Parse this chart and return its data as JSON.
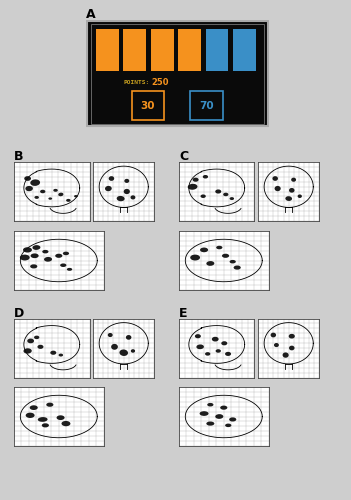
{
  "bg_color": "#cecece",
  "panel_bg": "#0a0a0a",
  "orange_color": "#f5921e",
  "blue_color": "#3a8fc7",
  "points_label_color": "#c8a020",
  "points_value_color": "#f5921e",
  "score_value": "250",
  "orange_score": "30",
  "blue_score": "70",
  "label_A": "A",
  "label_B": "B",
  "label_C": "C",
  "label_D": "D",
  "label_E": "E",
  "blobs": {
    "B_lat": [
      [
        0.18,
        0.72,
        0.09,
        0.08,
        0
      ],
      [
        0.28,
        0.65,
        0.13,
        0.11,
        10
      ],
      [
        0.2,
        0.55,
        0.1,
        0.09,
        5
      ],
      [
        0.38,
        0.5,
        0.07,
        0.06,
        0
      ],
      [
        0.55,
        0.52,
        0.06,
        0.05,
        0
      ],
      [
        0.62,
        0.45,
        0.07,
        0.06,
        20
      ],
      [
        0.72,
        0.35,
        0.06,
        0.05,
        0
      ],
      [
        0.3,
        0.4,
        0.06,
        0.05,
        0
      ],
      [
        0.48,
        0.38,
        0.05,
        0.04,
        0
      ],
      [
        0.82,
        0.42,
        0.05,
        0.04,
        0
      ]
    ],
    "B_cor": [
      [
        0.3,
        0.72,
        0.09,
        0.08,
        0
      ],
      [
        0.55,
        0.68,
        0.08,
        0.07,
        0
      ],
      [
        0.25,
        0.55,
        0.11,
        0.09,
        5
      ],
      [
        0.55,
        0.5,
        0.1,
        0.09,
        0
      ],
      [
        0.45,
        0.38,
        0.13,
        0.09,
        -5
      ],
      [
        0.65,
        0.4,
        0.08,
        0.07,
        0
      ]
    ],
    "B_ax": [
      [
        0.15,
        0.68,
        0.1,
        0.09,
        0
      ],
      [
        0.25,
        0.72,
        0.09,
        0.08,
        15
      ],
      [
        0.12,
        0.55,
        0.11,
        0.1,
        0
      ],
      [
        0.23,
        0.58,
        0.09,
        0.08,
        0
      ],
      [
        0.35,
        0.65,
        0.07,
        0.06,
        0
      ],
      [
        0.38,
        0.52,
        0.09,
        0.08,
        10
      ],
      [
        0.5,
        0.58,
        0.08,
        0.07,
        0
      ],
      [
        0.58,
        0.62,
        0.07,
        0.06,
        0
      ],
      [
        0.55,
        0.42,
        0.07,
        0.06,
        0
      ],
      [
        0.62,
        0.35,
        0.06,
        0.05,
        0
      ],
      [
        0.22,
        0.4,
        0.08,
        0.07,
        0
      ]
    ],
    "C_lat": [
      [
        0.22,
        0.7,
        0.08,
        0.07,
        0
      ],
      [
        0.35,
        0.75,
        0.07,
        0.06,
        0
      ],
      [
        0.18,
        0.58,
        0.13,
        0.1,
        8
      ],
      [
        0.52,
        0.5,
        0.08,
        0.07,
        0
      ],
      [
        0.62,
        0.45,
        0.07,
        0.06,
        0
      ],
      [
        0.32,
        0.42,
        0.07,
        0.06,
        0
      ],
      [
        0.7,
        0.38,
        0.06,
        0.05,
        0
      ]
    ],
    "C_cor": [
      [
        0.28,
        0.72,
        0.09,
        0.08,
        0
      ],
      [
        0.58,
        0.7,
        0.08,
        0.07,
        0
      ],
      [
        0.32,
        0.55,
        0.1,
        0.09,
        0
      ],
      [
        0.55,
        0.52,
        0.09,
        0.08,
        0
      ],
      [
        0.5,
        0.38,
        0.11,
        0.08,
        -5
      ],
      [
        0.68,
        0.42,
        0.07,
        0.06,
        0
      ]
    ],
    "C_ax": [
      [
        0.28,
        0.68,
        0.09,
        0.08,
        0
      ],
      [
        0.45,
        0.72,
        0.07,
        0.06,
        0
      ],
      [
        0.18,
        0.55,
        0.11,
        0.1,
        0
      ],
      [
        0.52,
        0.58,
        0.08,
        0.07,
        0
      ],
      [
        0.6,
        0.48,
        0.07,
        0.06,
        0
      ],
      [
        0.35,
        0.45,
        0.09,
        0.08,
        10
      ],
      [
        0.65,
        0.38,
        0.08,
        0.07,
        0
      ]
    ],
    "D_lat": [
      [
        0.22,
        0.62,
        0.09,
        0.08,
        0
      ],
      [
        0.35,
        0.52,
        0.08,
        0.07,
        0
      ],
      [
        0.18,
        0.45,
        0.11,
        0.09,
        5
      ],
      [
        0.52,
        0.42,
        0.08,
        0.07,
        0
      ],
      [
        0.3,
        0.68,
        0.07,
        0.06,
        0
      ],
      [
        0.62,
        0.38,
        0.06,
        0.05,
        0
      ]
    ],
    "D_cor": [
      [
        0.28,
        0.72,
        0.08,
        0.07,
        0
      ],
      [
        0.58,
        0.68,
        0.09,
        0.08,
        0
      ],
      [
        0.35,
        0.52,
        0.11,
        0.1,
        0
      ],
      [
        0.5,
        0.42,
        0.14,
        0.11,
        -8
      ],
      [
        0.65,
        0.45,
        0.07,
        0.06,
        0
      ]
    ],
    "D_ax": [
      [
        0.22,
        0.65,
        0.09,
        0.08,
        0
      ],
      [
        0.4,
        0.7,
        0.08,
        0.07,
        0
      ],
      [
        0.18,
        0.52,
        0.1,
        0.09,
        0
      ],
      [
        0.32,
        0.45,
        0.11,
        0.08,
        5
      ],
      [
        0.52,
        0.48,
        0.09,
        0.08,
        0
      ],
      [
        0.58,
        0.38,
        0.1,
        0.09,
        -5
      ],
      [
        0.35,
        0.35,
        0.08,
        0.07,
        0
      ]
    ],
    "E_lat": [
      [
        0.25,
        0.7,
        0.08,
        0.07,
        0
      ],
      [
        0.48,
        0.65,
        0.09,
        0.08,
        0
      ],
      [
        0.6,
        0.58,
        0.08,
        0.07,
        0
      ],
      [
        0.28,
        0.52,
        0.1,
        0.08,
        5
      ],
      [
        0.52,
        0.45,
        0.07,
        0.06,
        0
      ],
      [
        0.65,
        0.4,
        0.08,
        0.07,
        0
      ],
      [
        0.38,
        0.4,
        0.07,
        0.06,
        0
      ]
    ],
    "E_cor": [
      [
        0.25,
        0.72,
        0.09,
        0.08,
        0
      ],
      [
        0.55,
        0.7,
        0.1,
        0.08,
        0
      ],
      [
        0.3,
        0.55,
        0.08,
        0.07,
        0
      ],
      [
        0.55,
        0.5,
        0.09,
        0.08,
        0
      ],
      [
        0.45,
        0.38,
        0.1,
        0.09,
        -5
      ]
    ],
    "E_ax": [
      [
        0.35,
        0.7,
        0.07,
        0.06,
        0
      ],
      [
        0.5,
        0.65,
        0.08,
        0.07,
        0
      ],
      [
        0.28,
        0.55,
        0.1,
        0.08,
        0
      ],
      [
        0.45,
        0.5,
        0.09,
        0.08,
        5
      ],
      [
        0.6,
        0.45,
        0.08,
        0.07,
        0
      ],
      [
        0.35,
        0.38,
        0.09,
        0.07,
        0
      ],
      [
        0.55,
        0.35,
        0.07,
        0.06,
        0
      ]
    ]
  }
}
